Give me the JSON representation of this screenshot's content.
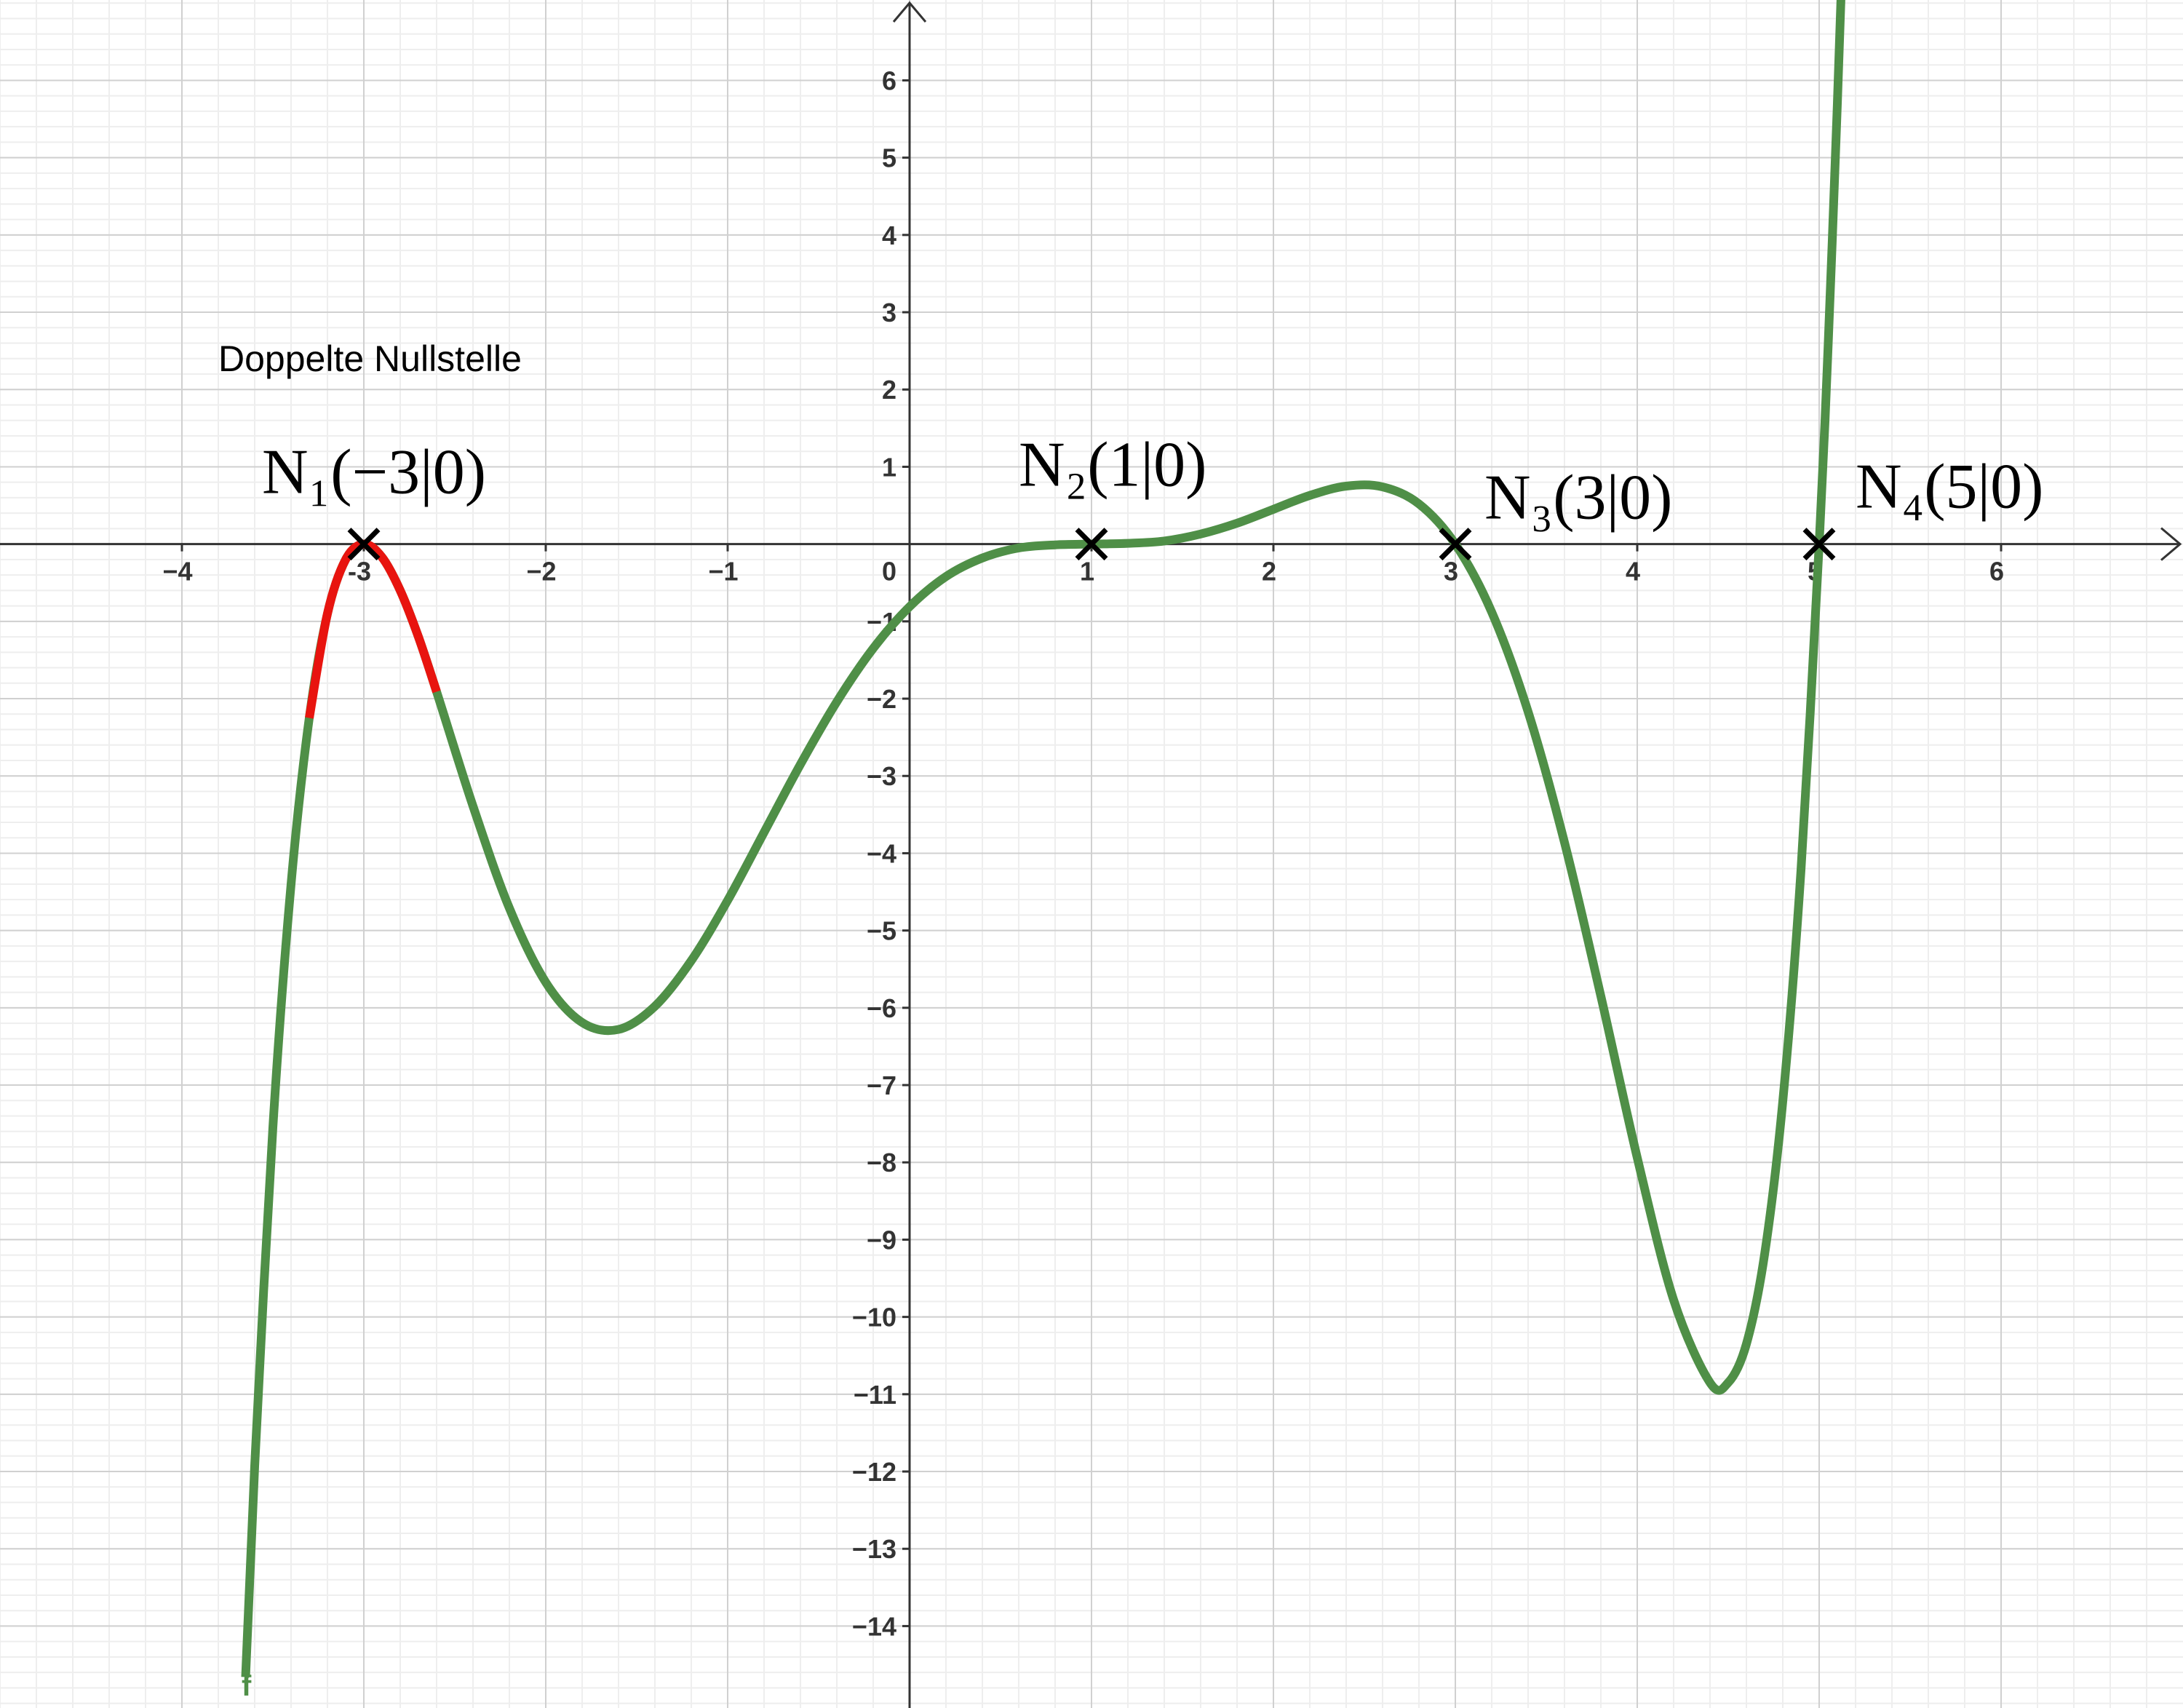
{
  "chart_data": {
    "type": "line",
    "annotation": "Doppelte Nullstelle",
    "function_label": "f",
    "xlim": [
      -5,
      7
    ],
    "ylim": [
      -15.06,
      7.04
    ],
    "xticks": [
      {
        "value": -4,
        "label": "−4"
      },
      -3,
      {
        "value": -2,
        "label": "−2"
      },
      {
        "value": -1,
        "label": "−1"
      },
      1,
      2,
      3,
      4,
      5,
      6
    ],
    "yticks": [
      {
        "value": -14,
        "label": "−14"
      },
      {
        "value": -13,
        "label": "−13"
      },
      {
        "value": -12,
        "label": "−12"
      },
      {
        "value": -11,
        "label": "−11"
      },
      {
        "value": -10,
        "label": "−10"
      },
      {
        "value": -9,
        "label": "−9"
      },
      {
        "value": -8,
        "label": "−8"
      },
      {
        "value": -7,
        "label": "−7"
      },
      {
        "value": -6,
        "label": "−6"
      },
      {
        "value": -5,
        "label": "−5"
      },
      {
        "value": -4,
        "label": "−4"
      },
      {
        "value": -3,
        "label": "−3"
      },
      {
        "value": -2,
        "label": "−2"
      },
      {
        "value": -1,
        "label": "−1"
      },
      1,
      2,
      3,
      4,
      5,
      6
    ],
    "origin_label": 0,
    "grid": true,
    "minor_grid": 5,
    "x": [
      -3.65,
      -3.6,
      -3.5,
      -3.4,
      -3.3,
      -3.2,
      -3.1,
      -3.0,
      -2.9,
      -2.8,
      -2.7,
      -2.6,
      -2.4,
      -2.2,
      -2.0,
      -1.8,
      -1.6,
      -1.4,
      -1.2,
      -1.0,
      -0.8,
      -0.6,
      -0.4,
      -0.2,
      0,
      0.2,
      0.4,
      0.6,
      0.8,
      1.0,
      1.2,
      1.4,
      1.6,
      1.8,
      2.0,
      2.2,
      2.4,
      2.6,
      2.8,
      3.0,
      3.2,
      3.4,
      3.6,
      3.8,
      4.0,
      4.2,
      4.4,
      4.5,
      4.6,
      4.7,
      4.8,
      4.9,
      5.0,
      5.05,
      5.1,
      5.12
    ],
    "series": [
      {
        "name": "f",
        "color": "#4f8f47",
        "values": [
          -14.66,
          -11.93,
          -7.55,
          -4.4,
          -2.25,
          -0.9,
          -0.2,
          0,
          -0.17,
          -0.6,
          -1.2,
          -1.91,
          -3.39,
          -4.71,
          -5.67,
          -6.19,
          -6.28,
          -5.98,
          -5.39,
          -4.61,
          -3.73,
          -2.85,
          -2.04,
          -1.35,
          -0.81,
          -0.42,
          -0.18,
          -0.05,
          -0.01,
          0,
          0.01,
          0.04,
          0.13,
          0.27,
          0.45,
          0.63,
          0.75,
          0.74,
          0.52,
          0,
          -0.88,
          -2.17,
          -3.86,
          -5.85,
          -7.94,
          -9.78,
          -10.85,
          -10.85,
          -10.35,
          -9.19,
          -7.21,
          -4.22,
          0,
          2.61,
          5.7,
          7.07
        ]
      },
      {
        "color": "#e8140f",
        "values": [
          null,
          null,
          null,
          null,
          -2.25,
          -0.9,
          -0.2,
          0,
          -0.17,
          -0.6,
          -1.2,
          -1.91,
          null,
          null,
          null,
          null,
          null,
          null,
          null,
          null,
          null,
          null,
          null,
          null,
          null,
          null,
          null,
          null,
          null,
          null,
          null,
          null,
          null,
          null,
          null,
          null,
          null,
          null,
          null,
          null,
          null,
          null,
          null,
          null,
          null,
          null,
          null,
          null,
          null,
          null,
          null,
          null,
          null,
          null,
          null,
          null
        ]
      }
    ],
    "points": [
      {
        "x": -3,
        "y": 0,
        "label": "N₁(−3|0)"
      },
      {
        "x": 1,
        "y": 0,
        "label": "N₂(1|0)"
      },
      {
        "x": 3,
        "y": 0,
        "label": "N₃(3|0)"
      },
      {
        "x": 5,
        "y": 0,
        "label": "N₄(5|0)"
      }
    ]
  }
}
